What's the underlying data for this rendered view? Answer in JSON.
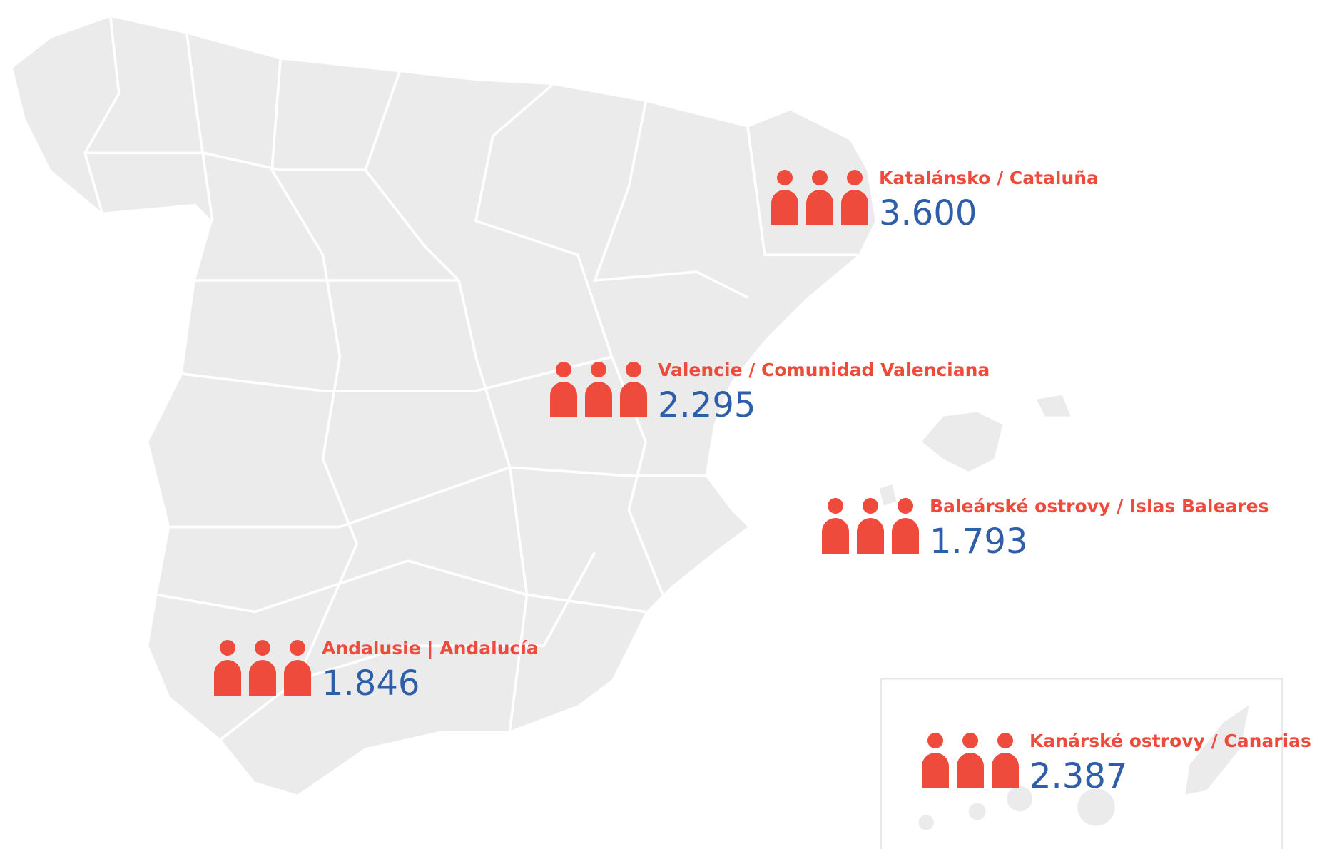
{
  "regions": [
    {
      "label": "Katalánsko / Cataluña",
      "value": "3.600"
    },
    {
      "label": "Valencie / Comunidad Valenciana",
      "value": "2.295"
    },
    {
      "label": "Baleárské ostrovy / Islas Baleares",
      "value": "1.793"
    },
    {
      "label": "Andalusie | Andalucía",
      "value": "1.846"
    },
    {
      "label": "Kanárské ostrovy / Canarias",
      "value": "2.387"
    }
  ]
}
